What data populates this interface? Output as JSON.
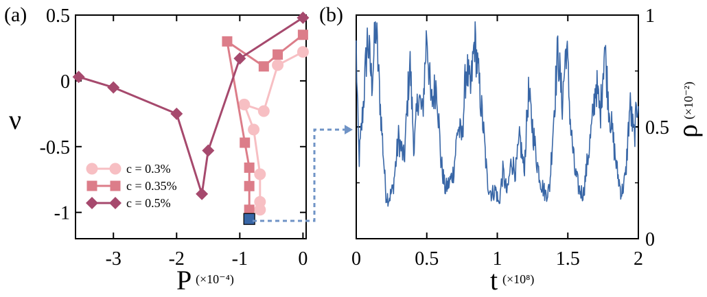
{
  "chart_data": [
    {
      "type": "line",
      "panel_label": "(a)",
      "xlabel": "P",
      "xunit": "(×10⁻⁴)",
      "ylabel": "ν",
      "xlim": [
        -3.6,
        0.05
      ],
      "ylim": [
        -1.2,
        0.5
      ],
      "xticks": [
        -3,
        -2,
        -1,
        0
      ],
      "yticks": [
        0.5,
        0,
        -0.5,
        -1
      ],
      "xtick_labels": [
        "-3",
        "-2",
        "-1",
        "0"
      ],
      "ytick_labels": [
        "0.5",
        "0",
        "-0.5",
        "-1"
      ],
      "legend_position": "bottom-left",
      "series": [
        {
          "name": "c = 0.3%",
          "marker": "circle",
          "color": "#f7bfc3",
          "points": [
            [
              0,
              0.22
            ],
            [
              -0.4,
              0.12
            ],
            [
              -0.62,
              -0.23
            ],
            [
              -0.93,
              -0.18
            ],
            [
              -0.78,
              -0.37
            ],
            [
              -0.68,
              -0.71
            ],
            [
              -0.68,
              -0.92
            ],
            [
              -0.68,
              -0.98
            ]
          ]
        },
        {
          "name": "c = 0.35%",
          "marker": "square",
          "color": "#dc7d89",
          "points": [
            [
              0,
              0.35
            ],
            [
              -0.4,
              0.2
            ],
            [
              -0.62,
              0.11
            ],
            [
              -1.2,
              0.3
            ],
            [
              -0.92,
              -0.47
            ],
            [
              -0.85,
              -0.66
            ],
            [
              -0.85,
              -0.8
            ],
            [
              -0.85,
              -0.98
            ]
          ]
        },
        {
          "name": "c = 0.5%",
          "marker": "diamond",
          "color": "#a6496d",
          "points": [
            [
              0,
              0.48
            ],
            [
              -1.0,
              0.17
            ],
            [
              -1.5,
              -0.53
            ],
            [
              -1.6,
              -0.86
            ],
            [
              -2.0,
              -0.25
            ],
            [
              -3.0,
              -0.05
            ],
            [
              -3.55,
              0.03
            ]
          ]
        }
      ],
      "highlight": {
        "color": "#3866a6",
        "point": [
          -0.85,
          -1.05
        ]
      }
    },
    {
      "type": "line",
      "panel_label": "(b)",
      "xlabel": "t",
      "xunit": "(×10⁸)",
      "ylabel": "ρ",
      "yunit": "(×10⁻²)",
      "xlim": [
        0,
        2
      ],
      "ylim": [
        0,
        1
      ],
      "xticks": [
        0,
        0.5,
        1,
        1.5,
        2
      ],
      "yticks": [
        0,
        0.5,
        1
      ],
      "xtick_labels": [
        "0",
        "0.5",
        "1",
        "1.5",
        "2"
      ],
      "ytick_labels": [
        "0",
        "0.5",
        "1"
      ],
      "color": "#3866a6",
      "anchors": [
        [
          0,
          0.85
        ],
        [
          0.01,
          0.55
        ],
        [
          0.02,
          0.35
        ],
        [
          0.05,
          0.6
        ],
        [
          0.08,
          0.9
        ],
        [
          0.11,
          0.7
        ],
        [
          0.14,
          0.95
        ],
        [
          0.17,
          0.6
        ],
        [
          0.19,
          0.4
        ],
        [
          0.21,
          0.2
        ],
        [
          0.23,
          0.18
        ],
        [
          0.26,
          0.22
        ],
        [
          0.3,
          0.45
        ],
        [
          0.34,
          0.35
        ],
        [
          0.38,
          0.8
        ],
        [
          0.41,
          0.4
        ],
        [
          0.44,
          0.65
        ],
        [
          0.47,
          0.55
        ],
        [
          0.5,
          0.93
        ],
        [
          0.53,
          0.6
        ],
        [
          0.57,
          0.7
        ],
        [
          0.6,
          0.35
        ],
        [
          0.63,
          0.22
        ],
        [
          0.66,
          0.25
        ],
        [
          0.69,
          0.3
        ],
        [
          0.72,
          0.5
        ],
        [
          0.75,
          0.45
        ],
        [
          0.78,
          0.78
        ],
        [
          0.81,
          0.65
        ],
        [
          0.84,
          0.9
        ],
        [
          0.87,
          0.7
        ],
        [
          0.9,
          0.5
        ],
        [
          0.93,
          0.25
        ],
        [
          0.96,
          0.2
        ],
        [
          0.99,
          0.22
        ],
        [
          1.01,
          0.15
        ],
        [
          1.04,
          0.3
        ],
        [
          1.07,
          0.2
        ],
        [
          1.1,
          0.35
        ],
        [
          1.13,
          0.3
        ],
        [
          1.16,
          0.45
        ],
        [
          1.19,
          0.3
        ],
        [
          1.22,
          0.65
        ],
        [
          1.25,
          0.5
        ],
        [
          1.28,
          0.35
        ],
        [
          1.31,
          0.25
        ],
        [
          1.34,
          0.2
        ],
        [
          1.37,
          0.22
        ],
        [
          1.4,
          0.55
        ],
        [
          1.43,
          0.85
        ],
        [
          1.46,
          0.6
        ],
        [
          1.49,
          0.88
        ],
        [
          1.52,
          0.5
        ],
        [
          1.55,
          0.3
        ],
        [
          1.58,
          0.22
        ],
        [
          1.61,
          0.2
        ],
        [
          1.64,
          0.35
        ],
        [
          1.67,
          0.5
        ],
        [
          1.7,
          0.7
        ],
        [
          1.73,
          0.55
        ],
        [
          1.76,
          0.87
        ],
        [
          1.79,
          0.6
        ],
        [
          1.82,
          0.45
        ],
        [
          1.85,
          0.3
        ],
        [
          1.88,
          0.2
        ],
        [
          1.91,
          0.28
        ],
        [
          1.94,
          0.6
        ],
        [
          1.97,
          0.45
        ],
        [
          2.0,
          0.65
        ]
      ]
    }
  ]
}
